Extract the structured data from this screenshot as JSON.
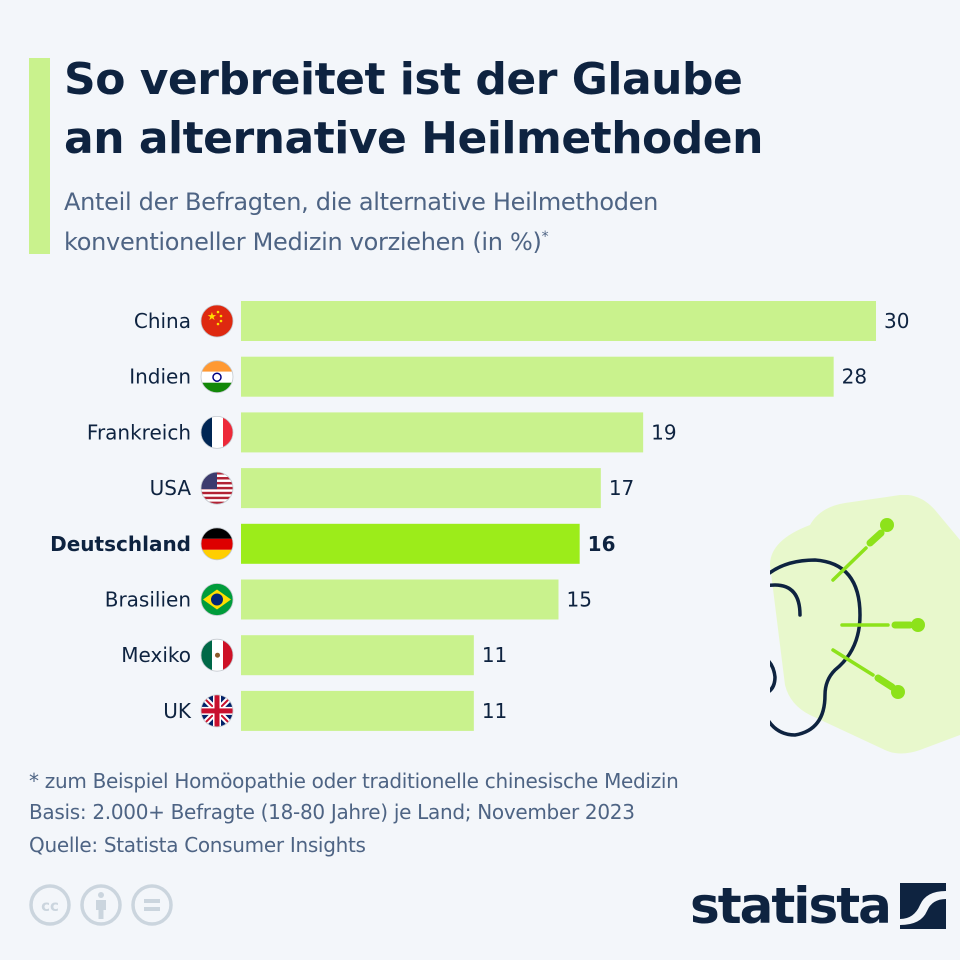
{
  "header": {
    "title_line1": "So verbreitet ist der Glaube",
    "title_line2": "an alternative Heilmethoden",
    "subtitle_line1": "Anteil der Befragten, die alternative Heilmethoden",
    "subtitle_line2": "konventioneller Medizin vorziehen (in %)",
    "subtitle_marker": "*"
  },
  "colors": {
    "bar": "#c9f28d",
    "highlight_bar": "#9cec1a",
    "text_dark": "#0e2340",
    "text_muted": "#4e6484",
    "background": "#f3f6fa",
    "accent": "#c9f28d"
  },
  "chart_data": {
    "type": "bar",
    "orientation": "horizontal",
    "title": "So verbreitet ist der Glaube an alternative Heilmethoden",
    "subtitle": "Anteil der Befragten, die alternative Heilmethoden konventioneller Medizin vorziehen (in %)*",
    "xlabel": "",
    "ylabel": "",
    "unit": "%",
    "xlim": [
      0,
      30
    ],
    "grid": false,
    "legend": "none",
    "categories": [
      "China",
      "Indien",
      "Frankreich",
      "USA",
      "Deutschland",
      "Brasilien",
      "Mexiko",
      "UK"
    ],
    "values": [
      30,
      28,
      19,
      17,
      16,
      15,
      11,
      11
    ],
    "highlighted": [
      "Deutschland"
    ],
    "flags": [
      "china-flag-icon",
      "india-flag-icon",
      "france-flag-icon",
      "usa-flag-icon",
      "germany-flag-icon",
      "brazil-flag-icon",
      "mexico-flag-icon",
      "uk-flag-icon"
    ]
  },
  "footer": {
    "note": "* zum Beispiel Homöopathie oder traditionelle chinesische Medizin",
    "basis": "Basis: 2.000+ Befragte (18-80 Jahre) je Land; November 2023",
    "source": "Quelle: Statista Consumer Insights",
    "license_icons": [
      "cc-icon",
      "attribution-icon",
      "no-derivatives-icon"
    ],
    "logo_text": "statista"
  }
}
